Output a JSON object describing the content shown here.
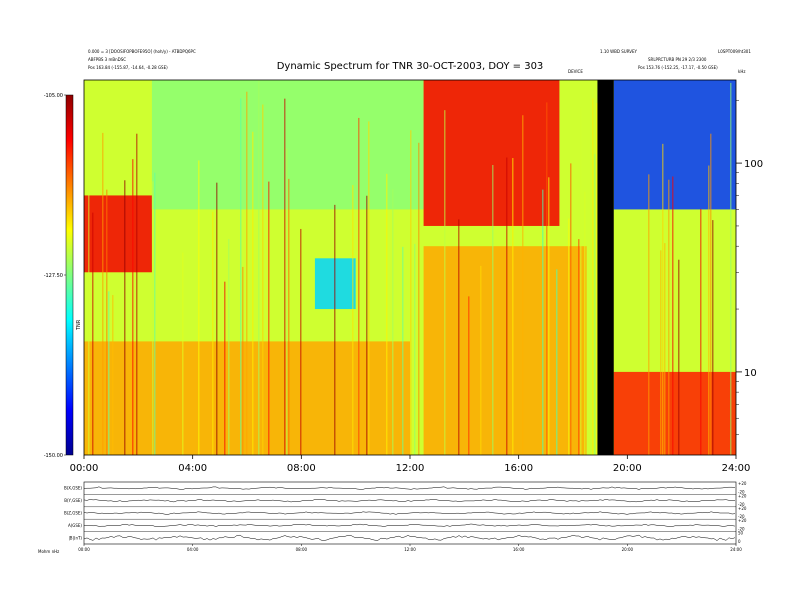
{
  "figure": {
    "title": "Dynamic Spectrum for TNR 30-OCT-2003, DOY = 303",
    "header_left_line1": "0.000 = 3 [DOOSIFOPBOFE95O] (hoh/y) - ATBDPQ6PC",
    "header_left_line2": "ABFPBS 3 mBnDSC",
    "header_left_line3": "Pos   163.84 (-155.87, -14.64, -0.28 GSE)",
    "header_right_line1": "1.10 WBD SURVEY",
    "header_right_line2": "SRLPRCTURB PN 29 2/3 2300",
    "header_right_line3": "Pos   153.76 (-152.25, -17.17, -0.50 GSE)",
    "header_right_code": "L0SPT009/ht301",
    "marker_label": "DEVICE",
    "unit_label": "kHz",
    "colorbar_title": "TNR",
    "footer_label": "Mohm  nHz"
  },
  "chart_data": [
    {
      "type": "heatmap",
      "title": "Dynamic Spectrum for TNR 30-OCT-2003, DOY = 303",
      "x_ticks": [
        "00:00",
        "04:00",
        "08:00",
        "12:00",
        "16:00",
        "20:00",
        "24:00"
      ],
      "x_range": [
        0,
        24
      ],
      "y_scale": "log",
      "y_ticks": [
        "10",
        "100"
      ],
      "y_range": [
        4,
        250
      ],
      "colorbar": {
        "ticks": [
          "-105.00",
          "-127.50",
          "-150.00"
        ],
        "range": [
          -150,
          -105
        ],
        "label": "TNR",
        "colors": [
          "#00008f",
          "#0000ff",
          "#0080ff",
          "#00ffff",
          "#80ff80",
          "#ffff00",
          "#ff8000",
          "#ff0000",
          "#8f0000"
        ]
      },
      "bands": [
        {
          "t_start": 0.0,
          "t_end": 2.5,
          "f_low": 30,
          "f_high": 70,
          "level": -110
        },
        {
          "t_start": 2.5,
          "t_end": 12.5,
          "f_low": 60,
          "f_high": 250,
          "level": -127
        },
        {
          "t_start": 12.5,
          "t_end": 17.5,
          "f_low": 50,
          "f_high": 250,
          "level": -110
        },
        {
          "t_start": 8.5,
          "t_end": 10.0,
          "f_low": 20,
          "f_high": 35,
          "level": -135
        },
        {
          "t_start": 12.5,
          "t_end": 18.5,
          "f_low": 4,
          "f_high": 40,
          "level": -118
        },
        {
          "t_start": 19.5,
          "t_end": 24.0,
          "f_low": 60,
          "f_high": 250,
          "level": -142
        },
        {
          "t_start": 19.5,
          "t_end": 24.0,
          "f_low": 4,
          "f_high": 10,
          "level": -112
        },
        {
          "t_start": 0.0,
          "t_end": 12.0,
          "f_low": 4,
          "f_high": 14,
          "level": -118
        }
      ],
      "data_gap": {
        "t_start": 18.9,
        "t_end": 19.5
      }
    },
    {
      "type": "line",
      "panel": "field-components",
      "series": [
        {
          "name": "B(X,GSE)",
          "right_ticks": [
            "+20",
            "-20"
          ]
        },
        {
          "name": "B(Y,GSE)",
          "right_ticks": [
            "+20",
            "-20"
          ]
        },
        {
          "name": "B(Z,GSE)",
          "right_ticks": [
            "+20",
            "-20"
          ]
        },
        {
          "name": "A(GSE)",
          "right_ticks": [
            "+20",
            "-20"
          ]
        },
        {
          "name": "|B|(nT)",
          "right_ticks": [
            "50",
            "0"
          ]
        }
      ],
      "x_ticks": [
        "00:00",
        "04:00",
        "08:00",
        "12:00",
        "16:00",
        "20:00",
        "24:00"
      ]
    }
  ]
}
